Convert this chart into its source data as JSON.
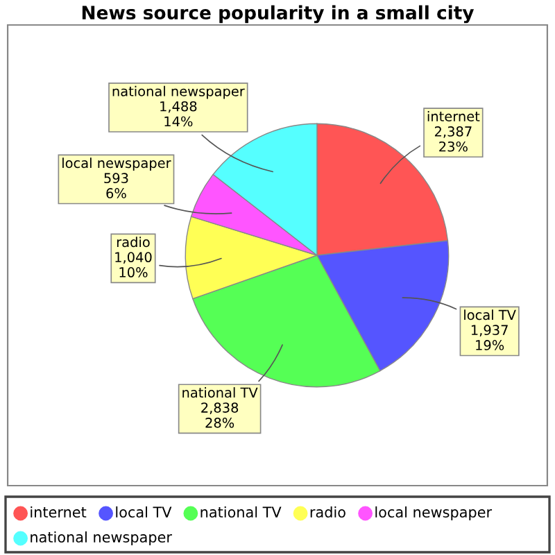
{
  "chart_data": {
    "type": "pie",
    "title": "News source popularity in a small city",
    "categories": [
      "internet",
      "local TV",
      "national TV",
      "radio",
      "local newspaper",
      "national newspaper"
    ],
    "values": [
      2387,
      1937,
      2838,
      1040,
      593,
      1488
    ],
    "value_labels": [
      "2,387\n23%",
      "1,937\n19%",
      "2,838\n28%",
      "1,040\n10%",
      "593\n6%",
      "1,488\n14%"
    ],
    "colors": [
      "#ff5555",
      "#5555ff",
      "#55ff55",
      "#ffff55",
      "#ff55ff",
      "#55ffff"
    ],
    "legend": "bottom"
  }
}
